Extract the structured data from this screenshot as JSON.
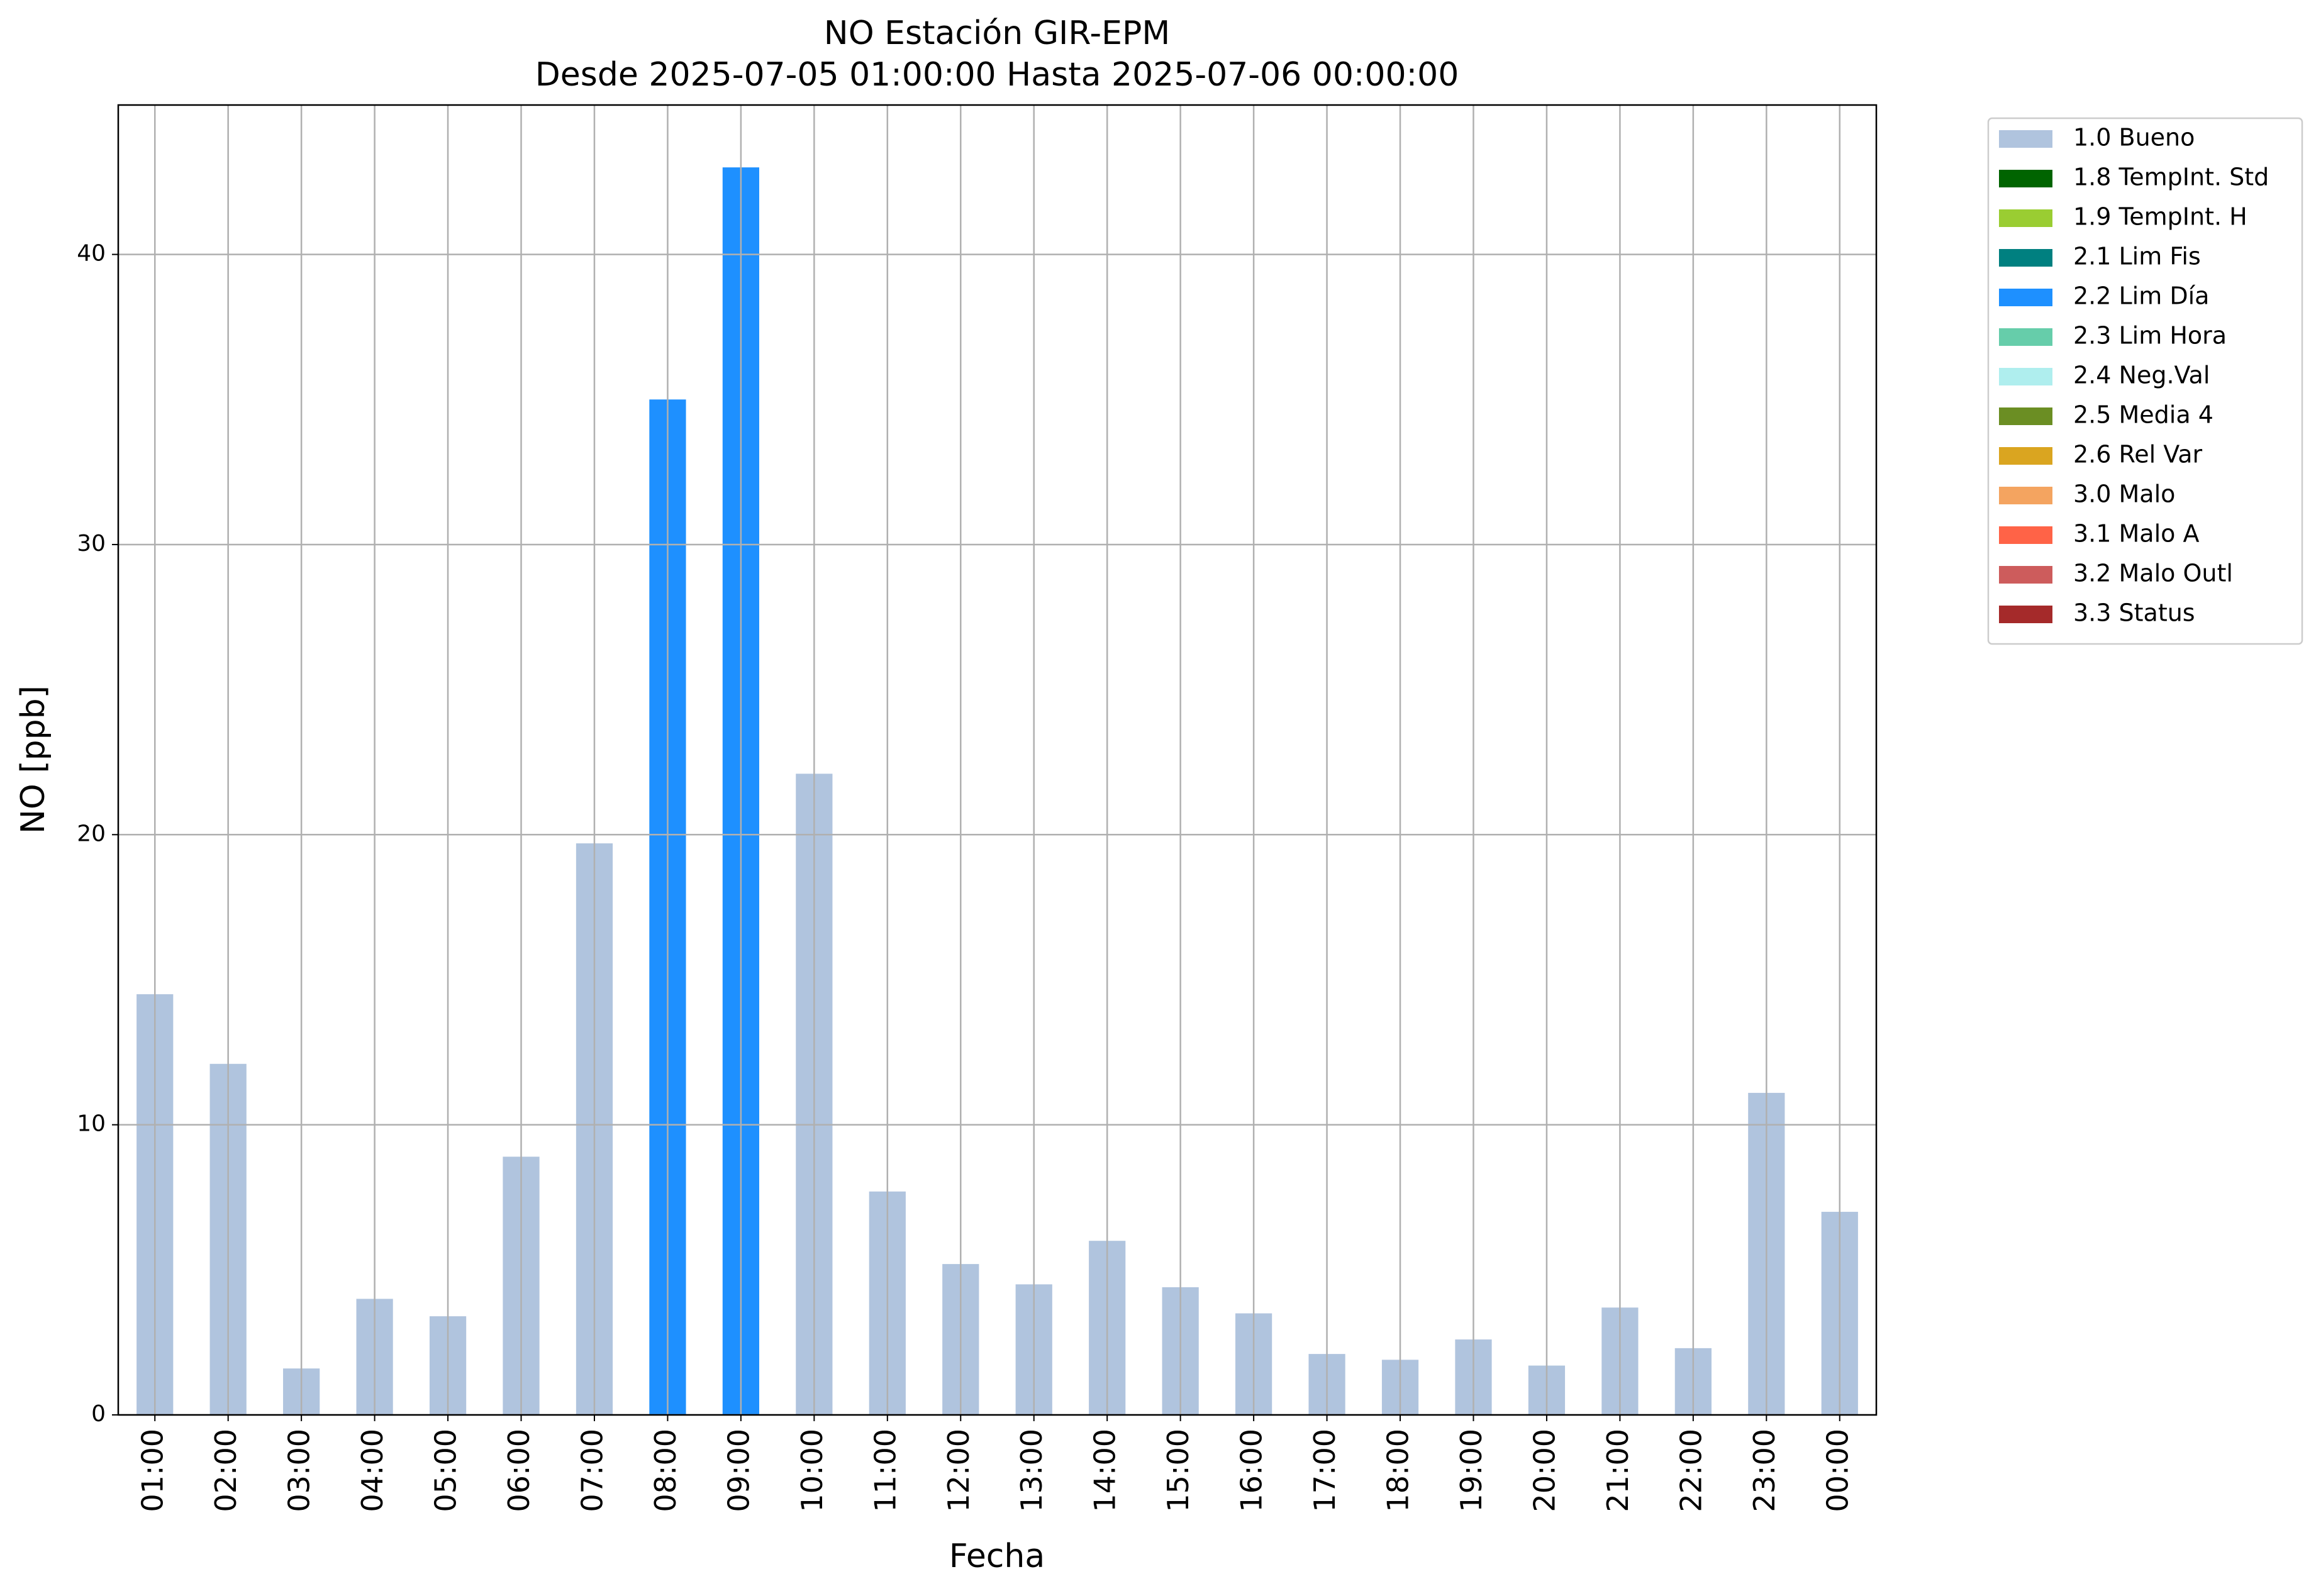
{
  "chart_data": {
    "type": "bar",
    "title": "NO Estación GIR-EPM",
    "subtitle": "Desde 2025-07-05 01:00:00 Hasta 2025-07-06 00:00:00",
    "x_label": "Fecha",
    "y_label": "NO [ppb]",
    "categories": [
      "01:00",
      "02:00",
      "03:00",
      "04:00",
      "05:00",
      "06:00",
      "07:00",
      "08:00",
      "09:00",
      "10:00",
      "11:00",
      "12:00",
      "13:00",
      "14:00",
      "15:00",
      "16:00",
      "17:00",
      "18:00",
      "19:00",
      "20:00",
      "21:00",
      "22:00",
      "23:00",
      "00:00"
    ],
    "series": [
      {
        "name": "1.0 Bueno",
        "color": "#b0c4de",
        "values": [
          14.5,
          12.1,
          1.6,
          4.0,
          3.4,
          8.9,
          19.7,
          null,
          null,
          22.1,
          7.7,
          5.2,
          4.5,
          6.0,
          4.4,
          3.5,
          2.1,
          1.9,
          2.6,
          1.7,
          3.7,
          2.3,
          11.1,
          7.0
        ]
      },
      {
        "name": "1.8 TempInt. Std",
        "color": "#006400",
        "values": [
          null,
          null,
          null,
          null,
          null,
          null,
          null,
          null,
          null,
          null,
          null,
          null,
          null,
          null,
          null,
          null,
          null,
          null,
          null,
          null,
          null,
          null,
          null,
          null
        ]
      },
      {
        "name": "1.9 TempInt. H",
        "color": "#9acd32",
        "values": [
          null,
          null,
          null,
          null,
          null,
          null,
          null,
          null,
          null,
          null,
          null,
          null,
          null,
          null,
          null,
          null,
          null,
          null,
          null,
          null,
          null,
          null,
          null,
          null
        ]
      },
      {
        "name": "2.1 Lim Fis",
        "color": "#008080",
        "values": [
          null,
          null,
          null,
          null,
          null,
          null,
          null,
          null,
          null,
          null,
          null,
          null,
          null,
          null,
          null,
          null,
          null,
          null,
          null,
          null,
          null,
          null,
          null,
          null
        ]
      },
      {
        "name": "2.2 Lim Día",
        "color": "#1e90ff",
        "values": [
          null,
          null,
          null,
          null,
          null,
          null,
          null,
          35.0,
          43.0,
          null,
          null,
          null,
          null,
          null,
          null,
          null,
          null,
          null,
          null,
          null,
          null,
          null,
          null,
          null
        ]
      },
      {
        "name": "2.3 Lim Hora",
        "color": "#66cdaa",
        "values": [
          null,
          null,
          null,
          null,
          null,
          null,
          null,
          null,
          null,
          null,
          null,
          null,
          null,
          null,
          null,
          null,
          null,
          null,
          null,
          null,
          null,
          null,
          null,
          null
        ]
      },
      {
        "name": "2.4 Neg.Val",
        "color": "#afeeee",
        "values": [
          null,
          null,
          null,
          null,
          null,
          null,
          null,
          null,
          null,
          null,
          null,
          null,
          null,
          null,
          null,
          null,
          null,
          null,
          null,
          null,
          null,
          null,
          null,
          null
        ]
      },
      {
        "name": "2.5 Media 4",
        "color": "#6b8e23",
        "values": [
          null,
          null,
          null,
          null,
          null,
          null,
          null,
          null,
          null,
          null,
          null,
          null,
          null,
          null,
          null,
          null,
          null,
          null,
          null,
          null,
          null,
          null,
          null,
          null
        ]
      },
      {
        "name": "2.6 Rel Var",
        "color": "#daa520",
        "values": [
          null,
          null,
          null,
          null,
          null,
          null,
          null,
          null,
          null,
          null,
          null,
          null,
          null,
          null,
          null,
          null,
          null,
          null,
          null,
          null,
          null,
          null,
          null,
          null
        ]
      },
      {
        "name": "3.0 Malo",
        "color": "#f4a460",
        "values": [
          null,
          null,
          null,
          null,
          null,
          null,
          null,
          null,
          null,
          null,
          null,
          null,
          null,
          null,
          null,
          null,
          null,
          null,
          null,
          null,
          null,
          null,
          null,
          null
        ]
      },
      {
        "name": "3.1 Malo A",
        "color": "#ff6347",
        "values": [
          null,
          null,
          null,
          null,
          null,
          null,
          null,
          null,
          null,
          null,
          null,
          null,
          null,
          null,
          null,
          null,
          null,
          null,
          null,
          null,
          null,
          null,
          null,
          null
        ]
      },
      {
        "name": "3.2 Malo Outl",
        "color": "#cd5c5c",
        "values": [
          null,
          null,
          null,
          null,
          null,
          null,
          null,
          null,
          null,
          null,
          null,
          null,
          null,
          null,
          null,
          null,
          null,
          null,
          null,
          null,
          null,
          null,
          null,
          null
        ]
      },
      {
        "name": "3.3 Status",
        "color": "#a52a2a",
        "values": [
          null,
          null,
          null,
          null,
          null,
          null,
          null,
          null,
          null,
          null,
          null,
          null,
          null,
          null,
          null,
          null,
          null,
          null,
          null,
          null,
          null,
          null,
          null,
          null
        ]
      }
    ],
    "ylim": [
      0,
      45.15
    ],
    "yticks": [
      0,
      10,
      20,
      30,
      40
    ],
    "grid": true,
    "legend": "outside-right",
    "stacked": true
  }
}
